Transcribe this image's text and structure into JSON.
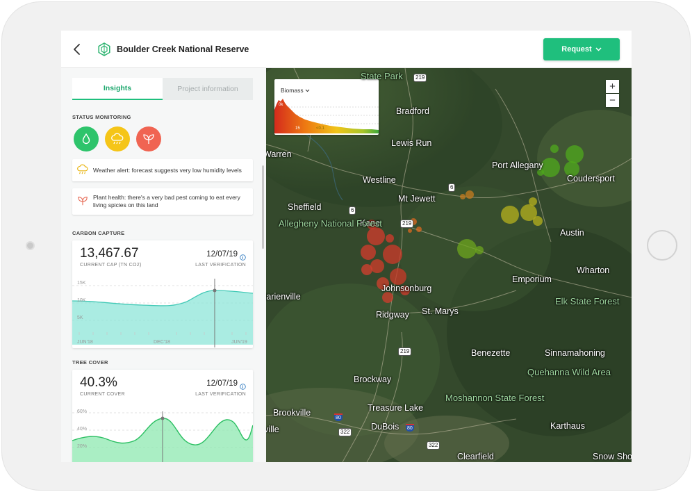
{
  "header": {
    "title": "Boulder Creek National Reserve",
    "request_label": "Request",
    "accent": "#1fbf7d"
  },
  "tabs": [
    {
      "label": "Insights",
      "active": true
    },
    {
      "label": "Project information",
      "active": false
    }
  ],
  "status_monitoring": {
    "heading": "STATUS MONITORING",
    "icons": [
      {
        "name": "water-drop-icon",
        "color": "#2ec46b"
      },
      {
        "name": "rain-cloud-icon",
        "color": "#f5c518"
      },
      {
        "name": "plant-sprout-icon",
        "color": "#f06452"
      }
    ],
    "alerts": [
      {
        "icon": "rain-cloud-icon",
        "text": "Weather alert: forecast suggests very low humidity levels"
      },
      {
        "icon": "plant-sprout-icon",
        "text": "Plant health: there's a very bad pest coming to eat every living spicies on this land"
      }
    ]
  },
  "carbon_capture": {
    "heading": "CARBON CAPTURE",
    "value": "13,467.67",
    "value_label": "CURRENT CAP (TN CO2)",
    "date": "12/07/19",
    "date_label": "LAST VERIFICATION",
    "chart_data": {
      "type": "area",
      "y_ticks": [
        "15K",
        "10K",
        "5K"
      ],
      "x_ticks": [
        "JUN'18",
        "DEC'18",
        "JUN'19"
      ],
      "color": "#5fd6c8"
    }
  },
  "tree_cover": {
    "heading": "TREE COVER",
    "value": "40.3%",
    "value_label": "CURRENT COVER",
    "date": "12/07/19",
    "date_label": "LAST VERIFICATION",
    "chart_data": {
      "type": "area",
      "y_ticks": [
        "60%",
        "40%",
        "20%"
      ],
      "color": "#3ecf7a"
    }
  },
  "map": {
    "legend": {
      "title": "Biomass",
      "tick_labels": [
        "0k",
        "15",
        "<0.1"
      ]
    },
    "zoom_in": "+",
    "zoom_out": "−",
    "cities": [
      "Bradford",
      "Lewis Run",
      "Warren",
      "Westline",
      "Port Allegany",
      "Coudersport",
      "Sheffield",
      "Mt Jewett",
      "Kane",
      "Austin",
      "Wharton",
      "Emporium",
      "Johnsonburg",
      "St. Marys",
      "Ridgway",
      "Marienville",
      "Benezette",
      "Sinnamahoning",
      "Brockway",
      "Treasure Lake",
      "Brookville",
      "DuBois",
      "Karthaus",
      "Reynoldsville",
      "Clearfield",
      "Snow Shoe"
    ],
    "parks": [
      "State Park",
      "Allegheny National Forest",
      "Elk State Forest",
      "Quehanna Wild Area",
      "Moshannon State Forest"
    ],
    "route_shields": [
      "219",
      "6",
      "6",
      "219",
      "219",
      "322",
      "322"
    ],
    "interstate_shields": [
      "80",
      "80"
    ]
  }
}
